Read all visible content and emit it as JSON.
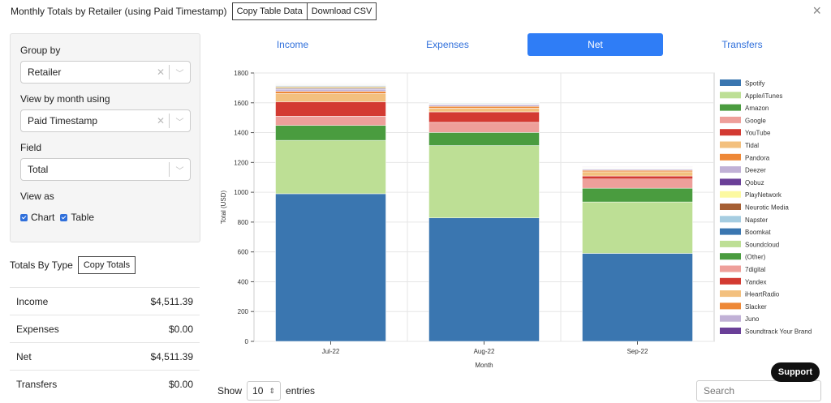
{
  "modal": {
    "title": "Monthly Totals by Retailer (using Paid Timestamp)",
    "copy_table_label": "Copy Table Data",
    "download_csv_label": "Download CSV",
    "close_glyph": "×"
  },
  "controls": {
    "group_by_label": "Group by",
    "group_by_value": "Retailer",
    "view_by_label": "View by month using",
    "view_by_value": "Paid Timestamp",
    "field_label": "Field",
    "field_value": "Total",
    "view_as_label": "View as",
    "chart_label": "Chart",
    "table_label": "Table"
  },
  "totals": {
    "title": "Totals By Type",
    "copy_label": "Copy Totals",
    "rows": [
      {
        "label": "Income",
        "value": "$4,511.39"
      },
      {
        "label": "Expenses",
        "value": "$0.00"
      },
      {
        "label": "Net",
        "value": "$4,511.39"
      },
      {
        "label": "Transfers",
        "value": "$0.00"
      }
    ]
  },
  "tabs": [
    {
      "label": "Income",
      "active": false
    },
    {
      "label": "Expenses",
      "active": false
    },
    {
      "label": "Net",
      "active": true
    },
    {
      "label": "Transfers",
      "active": false
    }
  ],
  "table_controls": {
    "show_label": "Show",
    "entries_value": "10",
    "entries_label": "entries",
    "search_placeholder": "Search"
  },
  "support_label": "Support",
  "chart_data": {
    "type": "bar",
    "stacked": true,
    "categories": [
      "Jul-22",
      "Aug-22",
      "Sep-22"
    ],
    "xlabel": "Month",
    "ylabel": "Total (USD)",
    "ylim": [
      0,
      1800
    ],
    "yticks": [
      0,
      200,
      400,
      600,
      800,
      1000,
      1200,
      1400,
      1600,
      1800
    ],
    "grid": true,
    "legend_position": "right",
    "series": [
      {
        "name": "Spotify",
        "color": "#3a76b0",
        "values": [
          990,
          828,
          590
        ]
      },
      {
        "name": "Apple/iTunes",
        "color": "#bddf95",
        "values": [
          358,
          485,
          345
        ]
      },
      {
        "name": "Amazon",
        "color": "#4a9c3f",
        "values": [
          100,
          88,
          92
        ]
      },
      {
        "name": "Google",
        "color": "#ee9f9a",
        "values": [
          62,
          68,
          62
        ]
      },
      {
        "name": "YouTube",
        "color": "#d33a32",
        "values": [
          97,
          70,
          20
        ]
      },
      {
        "name": "Tidal",
        "color": "#f3c07e",
        "values": [
          55,
          25,
          28
        ]
      },
      {
        "name": "Pandora",
        "color": "#ee8837",
        "values": [
          15,
          12,
          10
        ]
      },
      {
        "name": "Deezer",
        "color": "#c1b1d6",
        "values": [
          12,
          10,
          7
        ]
      },
      {
        "name": "Qobuz",
        "color": "#6a3f98",
        "values": [
          7,
          4,
          2
        ]
      },
      {
        "name": "PlayNetwork",
        "color": "#fcf9a0",
        "values": [
          8,
          3,
          2
        ]
      },
      {
        "name": "Neurotic Media",
        "color": "#a65f33",
        "values": [
          6,
          3,
          2
        ]
      },
      {
        "name": "Napster",
        "color": "#a6cde1",
        "values": [
          5,
          4,
          3
        ]
      },
      {
        "name": "Boomkat",
        "color": "#3a76b0",
        "values": [
          3,
          2,
          1
        ]
      },
      {
        "name": "Soundcloud",
        "color": "#bddf95",
        "values": [
          3,
          2,
          1
        ]
      },
      {
        "name": "(Other)",
        "color": "#4a9c3f",
        "values": [
          2,
          2,
          1
        ]
      },
      {
        "name": "7digital",
        "color": "#ee9f9a",
        "values": [
          2,
          1,
          1
        ]
      },
      {
        "name": "Yandex",
        "color": "#d33a32",
        "values": [
          2,
          1,
          1
        ]
      },
      {
        "name": "iHeartRadio",
        "color": "#f3c07e",
        "values": [
          2,
          1,
          1
        ]
      },
      {
        "name": "Slacker",
        "color": "#ee8837",
        "values": [
          1,
          1,
          1
        ]
      },
      {
        "name": "Juno",
        "color": "#c1b1d6",
        "values": [
          1,
          1,
          1
        ]
      },
      {
        "name": "Soundtrack Your Brand",
        "color": "#6a3f98",
        "values": [
          1,
          1,
          1
        ]
      }
    ]
  }
}
